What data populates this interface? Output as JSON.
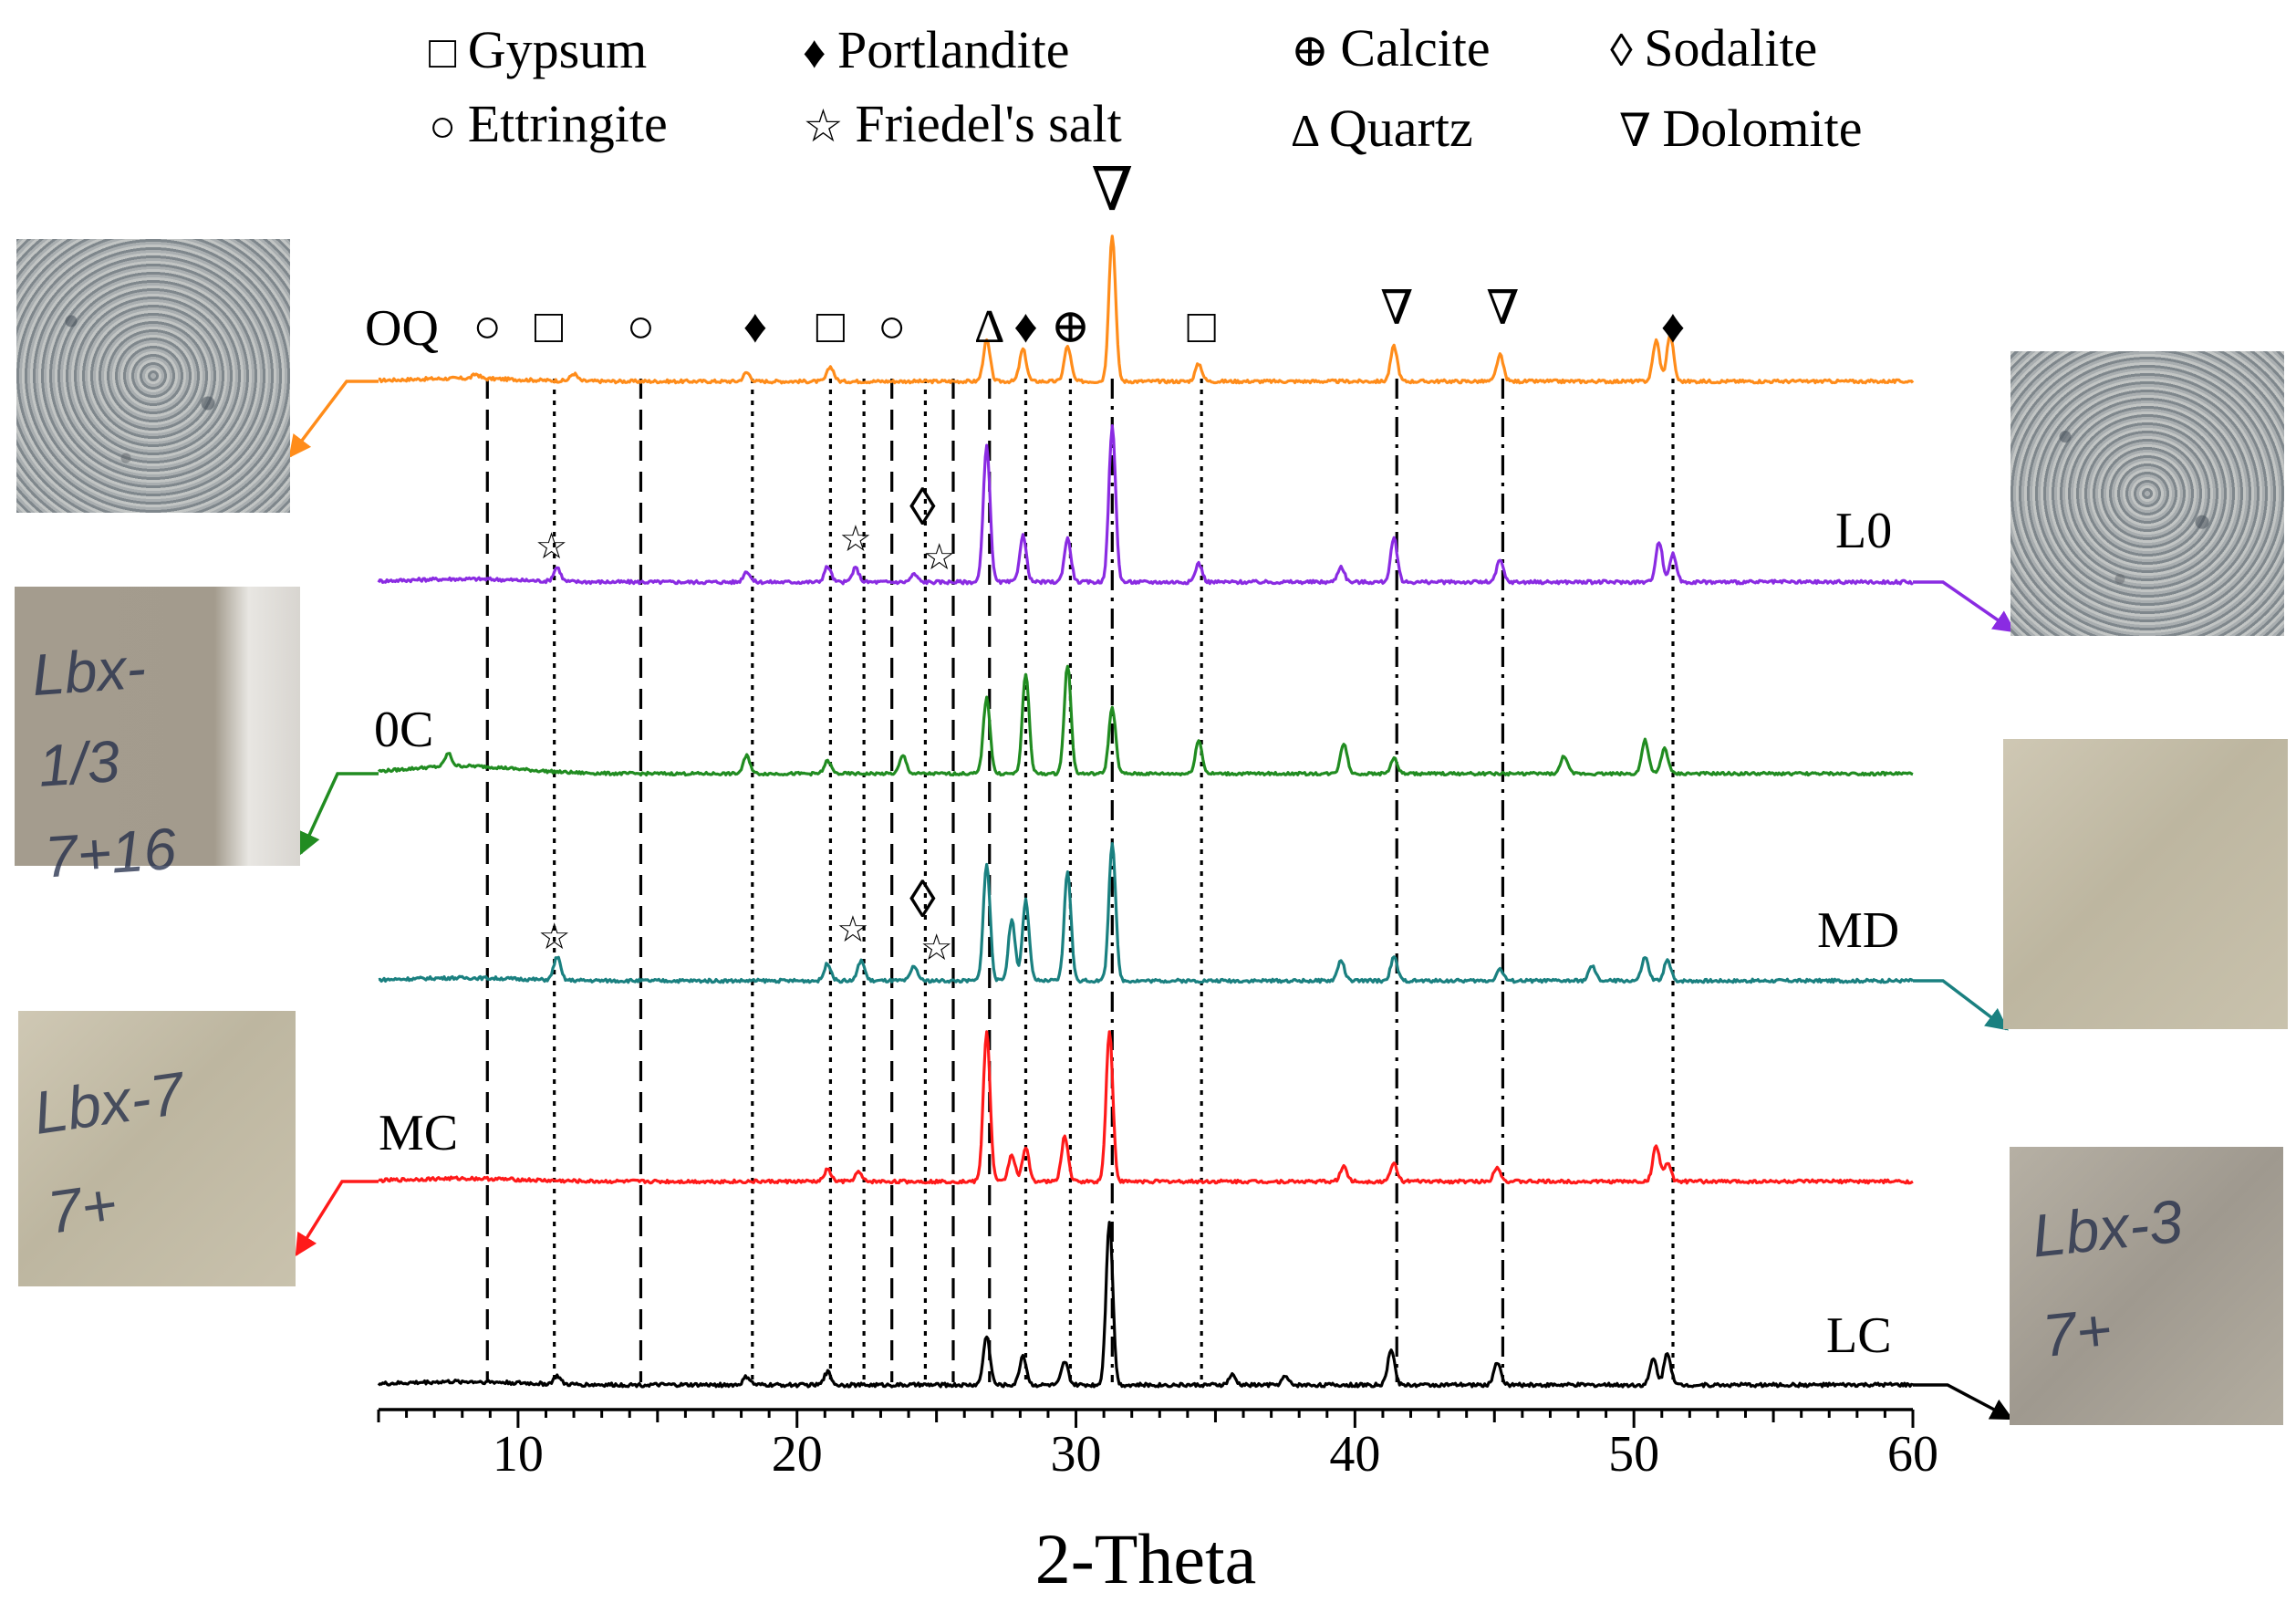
{
  "chart_data": {
    "type": "line",
    "title": "",
    "xlabel": "2-Theta",
    "ylabel": "",
    "xlim": [
      5,
      60
    ],
    "x_ticks": [
      "10",
      "20",
      "30",
      "40",
      "50",
      "60"
    ],
    "legend": [
      {
        "symbol": "□",
        "label": "Gypsum"
      },
      {
        "symbol": "♦",
        "label": "Portlandite"
      },
      {
        "symbol": "⊕",
        "label": "Calcite"
      },
      {
        "symbol": "◊",
        "label": "Sodalite"
      },
      {
        "symbol": "○",
        "label": "Ettringite"
      },
      {
        "symbol": "☆",
        "label": "Friedel's salt"
      },
      {
        "symbol": "Δ",
        "label": "Quartz"
      },
      {
        "symbol": "∇",
        "label": "Dolomite"
      }
    ],
    "series": [
      {
        "name": "OQ",
        "color": "#ff8c1a",
        "peaks": [
          [
            8.5,
            3
          ],
          [
            12,
            5
          ],
          [
            18.2,
            6
          ],
          [
            21.2,
            10
          ],
          [
            26.8,
            28
          ],
          [
            28.1,
            22
          ],
          [
            29.7,
            24
          ],
          [
            31.3,
            100
          ],
          [
            34.4,
            12
          ],
          [
            41.4,
            24
          ],
          [
            45.2,
            18
          ],
          [
            50.8,
            28
          ],
          [
            51.3,
            32
          ]
        ]
      },
      {
        "name": "L0",
        "color": "#8a2be2",
        "peaks": [
          [
            11.4,
            9
          ],
          [
            18.2,
            7
          ],
          [
            21.1,
            10
          ],
          [
            22.1,
            9
          ],
          [
            24.2,
            5
          ],
          [
            26.8,
            88
          ],
          [
            28.1,
            30
          ],
          [
            29.7,
            28
          ],
          [
            31.3,
            100
          ],
          [
            34.4,
            12
          ],
          [
            39.5,
            10
          ],
          [
            41.4,
            28
          ],
          [
            45.2,
            14
          ],
          [
            50.9,
            26
          ],
          [
            51.4,
            18
          ]
        ]
      },
      {
        "name": "0C",
        "color": "#218c21",
        "peaks": [
          [
            7.5,
            10
          ],
          [
            18.2,
            14
          ],
          [
            21.1,
            10
          ],
          [
            23.8,
            14
          ],
          [
            26.8,
            60
          ],
          [
            28.2,
            78
          ],
          [
            29.7,
            85
          ],
          [
            31.3,
            52
          ],
          [
            34.4,
            26
          ],
          [
            39.6,
            24
          ],
          [
            41.4,
            12
          ],
          [
            47.5,
            14
          ],
          [
            50.4,
            26
          ],
          [
            51.1,
            20
          ]
        ]
      },
      {
        "name": "MD",
        "color": "#1a8080",
        "peaks": [
          [
            11.4,
            16
          ],
          [
            21.1,
            12
          ],
          [
            22.3,
            14
          ],
          [
            24.2,
            10
          ],
          [
            26.8,
            80
          ],
          [
            27.7,
            42
          ],
          [
            28.2,
            55
          ],
          [
            29.7,
            75
          ],
          [
            31.3,
            95
          ],
          [
            39.5,
            14
          ],
          [
            41.4,
            16
          ],
          [
            45.2,
            8
          ],
          [
            48.5,
            10
          ],
          [
            50.4,
            16
          ],
          [
            51.2,
            14
          ]
        ]
      },
      {
        "name": "MC",
        "color": "#ff1a1a",
        "peaks": [
          [
            21.1,
            8
          ],
          [
            22.2,
            6
          ],
          [
            26.8,
            100
          ],
          [
            27.7,
            18
          ],
          [
            28.2,
            22
          ],
          [
            29.6,
            30
          ],
          [
            31.2,
            100
          ],
          [
            39.6,
            10
          ],
          [
            41.4,
            12
          ],
          [
            45.1,
            10
          ],
          [
            50.8,
            24
          ],
          [
            51.2,
            12
          ]
        ]
      },
      {
        "name": "LC",
        "color": "#000000",
        "peaks": [
          [
            11.4,
            5
          ],
          [
            18.2,
            5
          ],
          [
            21.1,
            8
          ],
          [
            26.8,
            30
          ],
          [
            28.1,
            18
          ],
          [
            29.6,
            14
          ],
          [
            31.2,
            100
          ],
          [
            35.6,
            6
          ],
          [
            37.5,
            5
          ],
          [
            41.3,
            22
          ],
          [
            45.1,
            14
          ],
          [
            50.7,
            16
          ],
          [
            51.2,
            20
          ]
        ]
      }
    ],
    "marker_lines": [
      {
        "x": 8.9,
        "style": "dash"
      },
      {
        "x": 11.3,
        "style": "dot"
      },
      {
        "x": 14.4,
        "style": "dash"
      },
      {
        "x": 18.4,
        "style": "dot"
      },
      {
        "x": 21.2,
        "style": "dot"
      },
      {
        "x": 22.4,
        "style": "dot"
      },
      {
        "x": 23.4,
        "style": "dash"
      },
      {
        "x": 24.6,
        "style": "dot"
      },
      {
        "x": 25.6,
        "style": "dash"
      },
      {
        "x": 26.9,
        "style": "dash"
      },
      {
        "x": 28.2,
        "style": "dot"
      },
      {
        "x": 29.8,
        "style": "dot"
      },
      {
        "x": 31.3,
        "style": "dashdot"
      },
      {
        "x": 34.5,
        "style": "dot"
      },
      {
        "x": 41.5,
        "style": "dashdot"
      },
      {
        "x": 45.3,
        "style": "dashdot"
      },
      {
        "x": 51.4,
        "style": "dot"
      }
    ],
    "top_annotations": [
      {
        "x": 8.9,
        "symbol": "○"
      },
      {
        "x": 11.1,
        "symbol": "□"
      },
      {
        "x": 14.4,
        "symbol": "○"
      },
      {
        "x": 18.5,
        "symbol": "♦"
      },
      {
        "x": 21.2,
        "symbol": "□"
      },
      {
        "x": 23.4,
        "symbol": "○"
      },
      {
        "x": 26.9,
        "symbol": "Δ"
      },
      {
        "x": 28.2,
        "symbol": "♦"
      },
      {
        "x": 29.8,
        "symbol": "⊕"
      },
      {
        "x": 31.3,
        "symbol": "∇"
      },
      {
        "x": 34.5,
        "symbol": "□"
      },
      {
        "x": 41.5,
        "symbol": "∇"
      },
      {
        "x": 45.3,
        "symbol": "∇"
      },
      {
        "x": 51.4,
        "symbol": "♦"
      }
    ],
    "trace_annotations": [
      {
        "series": "L0",
        "x": 11.2,
        "symbol": "☆"
      },
      {
        "series": "L0",
        "x": 22.1,
        "symbol": "☆"
      },
      {
        "series": "L0",
        "x": 24.5,
        "symbol": "◊"
      },
      {
        "series": "L0",
        "x": 25.1,
        "symbol": "☆"
      },
      {
        "series": "MD",
        "x": 11.3,
        "symbol": "☆"
      },
      {
        "series": "MD",
        "x": 22.0,
        "symbol": "☆"
      },
      {
        "series": "MD",
        "x": 24.5,
        "symbol": "◊"
      },
      {
        "series": "MD",
        "x": 25.0,
        "symbol": "☆"
      }
    ]
  },
  "photos": [
    {
      "id": "OQ",
      "writing": ""
    },
    {
      "id": "0C",
      "writing": "Lbx-1/3 7+16"
    },
    {
      "id": "MC",
      "writing": "Lbx-7 7+"
    },
    {
      "id": "L0",
      "writing": ""
    },
    {
      "id": "MD",
      "writing": ""
    },
    {
      "id": "LC",
      "writing": "Lbx-3 7+"
    }
  ]
}
